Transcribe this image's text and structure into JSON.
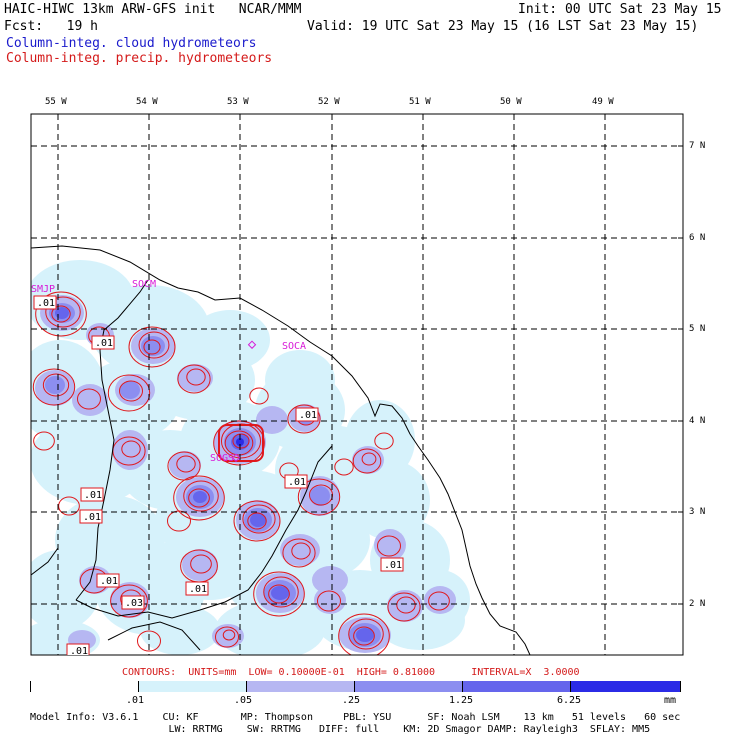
{
  "header": {
    "line1_left": "HAIC-HIWC 13km ARW-GFS init   NCAR/MMM",
    "line1_right": "Init: 00 UTC Sat 23 May 15",
    "line2_left": "Fcst:   19 h",
    "line2_right": "Valid: 19 UTC Sat 23 May 15 (16 LST Sat 23 May 15)",
    "field_cloud": "Column-integ. cloud hydrometeors",
    "field_precip": "Column-integ. precip. hydrometeors"
  },
  "map": {
    "lon_labels": [
      "55 W",
      "54 W",
      "53 W",
      "52 W",
      "51 W",
      "50 W",
      "49 W"
    ],
    "lat_labels": [
      "7 N",
      "6 N",
      "5 N",
      "4 N",
      "3 N",
      "2 N"
    ],
    "stations": [
      "SMJP",
      "SOCM",
      "SOCA",
      "SOGS"
    ],
    "contour_labels": [
      ".01",
      ".01",
      ".01",
      ".01",
      ".01",
      ".01",
      ".01",
      ".01",
      ".01",
      ".03",
      ".01"
    ],
    "colors": {
      "shade_01": "#d6f2fb",
      "shade_05": "#b6b7f2",
      "shade_25": "#8c8ef0",
      "shade_125": "#6565ec",
      "shade_625": "#2b2be6",
      "precip_contour": "#e0181c",
      "station": "#d81ad8"
    }
  },
  "contour_info": "CONTOURS:  UNITS=mm  LOW= 0.10000E-01  HIGH= 0.81000      INTERVAL=X  3.0000",
  "colorbar": {
    "labels": [
      ".01",
      ".05",
      ".25",
      "1.25",
      "6.25"
    ],
    "units": "mm",
    "colors": [
      "#ffffff",
      "#d6f2fb",
      "#b6b7f2",
      "#8c8ef0",
      "#6565ec",
      "#2b2be6",
      "#1010e0"
    ]
  },
  "model_info": {
    "line1": "Model Info: V3.6.1    CU: KF       MP: Thompson     PBL: YSU      SF: Noah LSM    13 km   51 levels   60 sec",
    "line2": "                       LW: RRTMG    SW: RRTMG   DIFF: full    KM: 2D Smagor DAMP: Rayleigh3  SFLAY: MM5"
  }
}
